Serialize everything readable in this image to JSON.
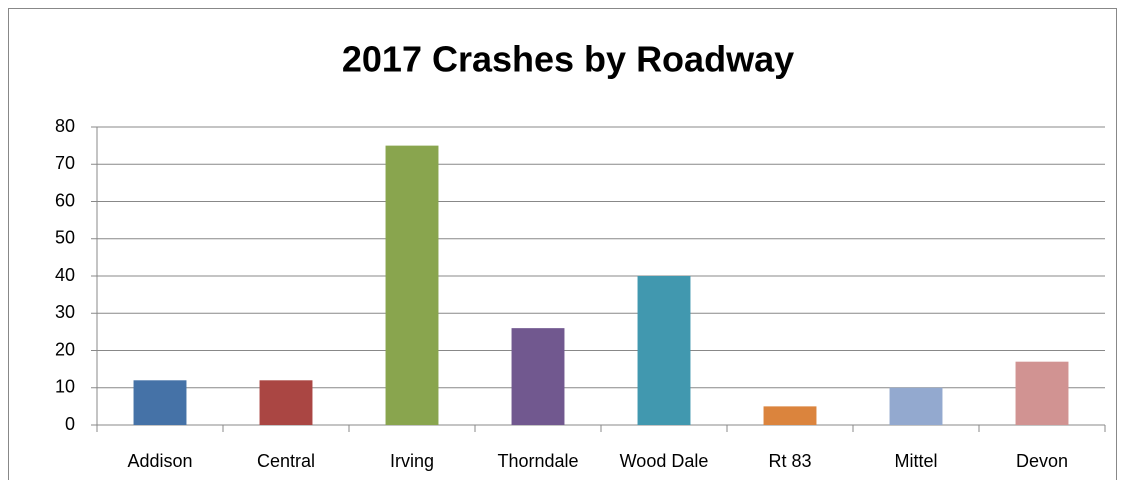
{
  "chart_data": {
    "type": "bar",
    "title": "2017 Crashes by Roadway",
    "categories": [
      "Addison",
      "Central",
      "Irving",
      "Thorndale",
      "Wood Dale",
      "Rt 83",
      "Mittel",
      "Devon"
    ],
    "values": [
      12,
      12,
      75,
      26,
      40,
      5,
      10,
      17
    ],
    "colors": [
      "#4572a7",
      "#aa4643",
      "#89a54e",
      "#71588f",
      "#4198af",
      "#db843d",
      "#93a9cf",
      "#d19392"
    ],
    "ylim": [
      0,
      80
    ],
    "yticks": [
      0,
      10,
      20,
      30,
      40,
      50,
      60,
      70,
      80
    ],
    "grid": true
  }
}
